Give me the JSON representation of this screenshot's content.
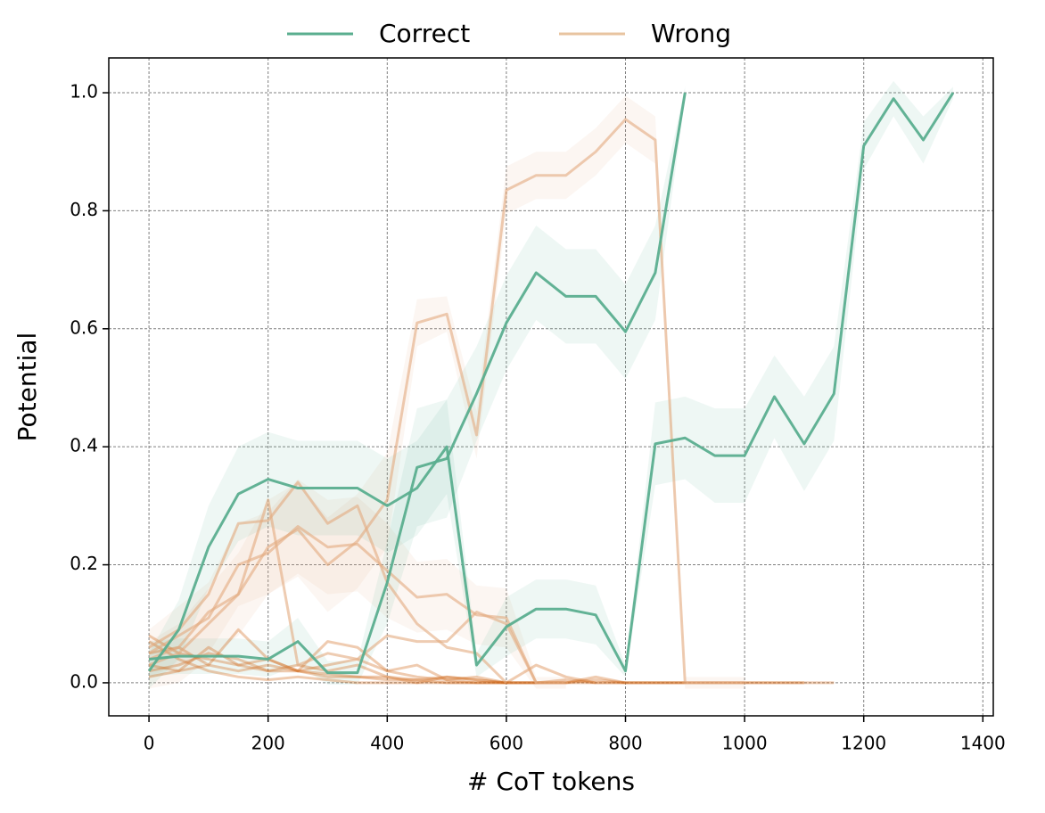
{
  "chart_data": {
    "type": "line",
    "x_label": "# CoT tokens",
    "y_label": "Potential",
    "xlim": [
      -67.5,
      1417.5
    ],
    "ylim": [
      -0.056,
      1.059
    ],
    "xticks": [
      0,
      200,
      400,
      600,
      800,
      1000,
      1200,
      1400
    ],
    "yticks": [
      {
        "value": 0,
        "label": "0.0"
      },
      0.2,
      0.4,
      0.6,
      0.8,
      {
        "value": 1,
        "label": "1.0"
      }
    ],
    "grid": true,
    "legend_position": "top",
    "legend": [
      {
        "name": "Correct",
        "color": "#5aae8f"
      },
      {
        "name": "Wrong",
        "color": "#e8c4a0"
      }
    ],
    "series": [
      {
        "group": 1,
        "color": "#d2691e",
        "opacity": 0.35,
        "x": [
          0,
          50,
          100,
          150,
          200,
          250,
          300,
          350,
          400,
          450,
          500,
          550,
          600,
          650,
          700,
          750,
          800,
          850,
          900,
          950,
          1000,
          1050,
          1100,
          1150
        ],
        "values": [
          0.08,
          0.05,
          0.04,
          0.03,
          0.02,
          0.02,
          0.01,
          0.01,
          0.005,
          0.005,
          0,
          0,
          0,
          0,
          0,
          0.005,
          0,
          0,
          0,
          0,
          0,
          0,
          0,
          0
        ]
      },
      {
        "group": 1,
        "color": "#d2691e",
        "opacity": 0.35,
        "x": [
          0,
          50,
          100,
          150,
          200,
          250,
          300,
          350,
          400,
          450,
          500,
          550,
          600,
          650,
          700,
          750,
          800,
          850,
          900
        ],
        "values": [
          0.05,
          0.06,
          0.03,
          0.02,
          0.03,
          0.02,
          0.015,
          0.01,
          0.01,
          0.005,
          0.01,
          0.005,
          0,
          0,
          0,
          0.01,
          0,
          0,
          0
        ]
      },
      {
        "group": 1,
        "color": "#d2691e",
        "opacity": 0.35,
        "x": [
          0,
          50,
          100,
          150,
          200,
          250,
          300,
          350,
          400,
          450,
          500,
          550,
          600,
          650,
          700,
          750,
          800
        ],
        "values": [
          0.02,
          0.03,
          0.05,
          0.04,
          0.02,
          0.03,
          0.02,
          0.03,
          0.01,
          0,
          0.01,
          0.005,
          0,
          0,
          0.005,
          0,
          0
        ]
      },
      {
        "group": 1,
        "color": "#d2691e",
        "opacity": 0.35,
        "x": [
          0,
          50,
          100,
          150,
          200,
          250,
          300,
          350,
          400,
          450,
          500,
          550,
          600,
          650,
          700,
          750,
          800,
          850,
          900,
          950,
          1000,
          1050,
          1100
        ],
        "values": [
          0.07,
          0.04,
          0.02,
          0.01,
          0.005,
          0.01,
          0.005,
          0,
          0,
          0,
          0,
          0,
          0,
          0,
          0,
          0,
          0,
          0,
          0,
          0,
          0,
          0,
          0
        ]
      },
      {
        "group": 1,
        "color": "#d2691e",
        "opacity": 0.35,
        "x": [
          0,
          50,
          100,
          150,
          200,
          250,
          300,
          350,
          400,
          450,
          500,
          550,
          600
        ],
        "values": [
          0.03,
          0.02,
          0.06,
          0.03,
          0.04,
          0.02,
          0.03,
          0.04,
          0.02,
          0.01,
          0.005,
          0,
          0
        ]
      },
      {
        "group": 1,
        "color": "#d2691e",
        "opacity": 0.35,
        "x": [
          0,
          50,
          100,
          150,
          200,
          250,
          300,
          350,
          400,
          450,
          500,
          550,
          600,
          650,
          700,
          750
        ],
        "values": [
          0.01,
          0.02,
          0.03,
          0.09,
          0.04,
          0.02,
          0.07,
          0.06,
          0.02,
          0.03,
          0.005,
          0.01,
          0,
          0.03,
          0.01,
          0
        ]
      },
      {
        "group": 1,
        "color": "#e2aa7e",
        "opacity": 0.6,
        "x": [
          0,
          50,
          100,
          150,
          200,
          250,
          300,
          350,
          400,
          450,
          500,
          550,
          600,
          650
        ],
        "values": [
          0.04,
          0.06,
          0.12,
          0.15,
          0.31,
          0.03,
          0.05,
          0.04,
          0.08,
          0.07,
          0.07,
          0.12,
          0.1,
          0
        ]
      },
      {
        "group": 1,
        "color": "#e2aa7e",
        "opacity": 0.6,
        "x": [
          0,
          50,
          100,
          150,
          200,
          250,
          300,
          350,
          400,
          450,
          500,
          550,
          600
        ],
        "values": [
          0.06,
          0.09,
          0.15,
          0.27,
          0.275,
          0.34,
          0.27,
          0.3,
          0.17,
          0.1,
          0.06,
          0.05,
          0
        ]
      },
      {
        "group": 1,
        "color": "#e2aa7e",
        "opacity": 0.6,
        "x": [
          0,
          50,
          100,
          150,
          200,
          250,
          300,
          350,
          400,
          450,
          500,
          550,
          600,
          650,
          700
        ],
        "values": [
          0.05,
          0.08,
          0.11,
          0.2,
          0.22,
          0.265,
          0.23,
          0.235,
          0.19,
          0.145,
          0.15,
          0.115,
          0.11,
          0,
          0
        ],
        "err": [
          0.04,
          0.05,
          0.06,
          0.07,
          0.07,
          0.08,
          0.08,
          0.08,
          0.08,
          0.06,
          0.06,
          0.05,
          0.05,
          0.01,
          0.01
        ]
      },
      {
        "group": 1,
        "color": "#e2aa7e",
        "opacity": 0.6,
        "x": [
          0,
          50,
          100,
          150,
          200,
          250,
          300,
          350,
          400,
          450,
          500,
          550,
          600,
          650,
          700,
          750,
          800,
          850,
          900,
          950,
          1000
        ],
        "values": [
          0.03,
          0.05,
          0.1,
          0.15,
          0.23,
          0.26,
          0.2,
          0.24,
          0.31,
          0.61,
          0.625,
          0.42,
          0.835,
          0.86,
          0.86,
          0.9,
          0.955,
          0.92,
          0,
          0,
          0
        ],
        "err": [
          0.04,
          0.05,
          0.06,
          0.07,
          0.08,
          0.08,
          0.08,
          0.08,
          0.08,
          0.04,
          0.03,
          0.04,
          0.04,
          0.04,
          0.04,
          0.04,
          0.04,
          0.04,
          0.01,
          0.01,
          0.01
        ]
      },
      {
        "group": 0,
        "color": "#5aae8f",
        "opacity": 0.95,
        "x": [
          0,
          50,
          100,
          150,
          200,
          250,
          300,
          350,
          400,
          450,
          500,
          550,
          600,
          650,
          700,
          750,
          800,
          850,
          900,
          950,
          1000,
          1050,
          1100,
          1150,
          1200,
          1250,
          1300,
          1350
        ],
        "values": [
          0.02,
          0.09,
          0.23,
          0.32,
          0.345,
          0.33,
          0.33,
          0.33,
          0.3,
          0.33,
          0.4,
          0.03,
          0.095,
          0.125,
          0.125,
          0.115,
          0.02,
          0.405,
          0.415,
          0.385,
          0.385,
          0.485,
          0.405,
          0.49,
          0.91,
          0.99,
          0.92,
          1
        ],
        "err": [
          0.03,
          0.05,
          0.07,
          0.08,
          0.08,
          0.08,
          0.08,
          0.08,
          0.08,
          0.08,
          0.08,
          0.02,
          0.05,
          0.05,
          0.05,
          0.05,
          0.01,
          0.07,
          0.07,
          0.08,
          0.08,
          0.07,
          0.08,
          0.08,
          0.04,
          0.03,
          0.04,
          0.01
        ]
      },
      {
        "group": 0,
        "color": "#5aae8f",
        "opacity": 0.95,
        "x": [
          0,
          50,
          100,
          150,
          200,
          250,
          300,
          350,
          400,
          450,
          500,
          550,
          600,
          650,
          700,
          750,
          800,
          850,
          900
        ],
        "values": [
          0.04,
          0.045,
          0.045,
          0.045,
          0.04,
          0.07,
          0.017,
          0.017,
          0.17,
          0.365,
          0.38,
          0.49,
          0.61,
          0.695,
          0.655,
          0.655,
          0.595,
          0.695,
          1
        ],
        "err": [
          0.03,
          0.03,
          0.03,
          0.03,
          0.03,
          0.04,
          0.02,
          0.02,
          0.07,
          0.1,
          0.1,
          0.08,
          0.08,
          0.08,
          0.08,
          0.08,
          0.08,
          0.08,
          0.01
        ]
      }
    ]
  }
}
